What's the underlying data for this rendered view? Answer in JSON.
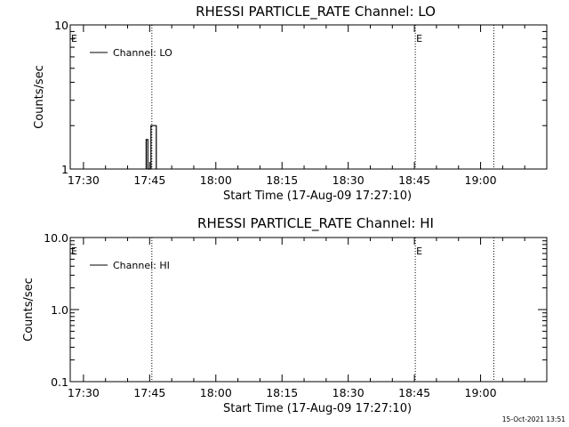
{
  "chart_data": [
    {
      "type": "line",
      "title": "RHESSI PARTICLE_RATE Channel: LO",
      "xlabel": "Start Time (17-Aug-09 17:27:10)",
      "ylabel": "Counts/sec",
      "x_tick_labels": [
        "17:30",
        "17:45",
        "18:00",
        "18:15",
        "18:30",
        "18:45",
        "19:00"
      ],
      "x_ticks_minutes": [
        0,
        15,
        30,
        45,
        60,
        75,
        90
      ],
      "xlim_minutes_after_17_30": [
        -3,
        105
      ],
      "y_scale": "log",
      "ylim": [
        1,
        10
      ],
      "y_tick_labels": [
        "1",
        "10"
      ],
      "y_ticks": [
        1,
        10
      ],
      "grid": false,
      "legend": "top-left",
      "series": [
        {
          "name": "Channel: LO",
          "color": "#000000",
          "points": [
            {
              "x": 14.2,
              "y": 1
            },
            {
              "x": 14.2,
              "y": 1.6
            },
            {
              "x": 14.6,
              "y": 1.6
            },
            {
              "x": 14.6,
              "y": 1
            },
            {
              "x": 15.3,
              "y": 1
            },
            {
              "x": 15.3,
              "y": 2
            },
            {
              "x": 16.5,
              "y": 2
            },
            {
              "x": 16.5,
              "y": 1
            }
          ]
        }
      ],
      "vertical_markers": [
        {
          "x": 15.5,
          "label": ""
        },
        {
          "x": 75.2,
          "label": "E"
        },
        {
          "x": 93,
          "label": ""
        }
      ],
      "edge_label": "E"
    },
    {
      "type": "line",
      "title": "RHESSI PARTICLE_RATE Channel: HI",
      "xlabel": "Start Time (17-Aug-09 17:27:10)",
      "ylabel": "Counts/sec",
      "x_tick_labels": [
        "17:30",
        "17:45",
        "18:00",
        "18:15",
        "18:30",
        "18:45",
        "19:00"
      ],
      "x_ticks_minutes": [
        0,
        15,
        30,
        45,
        60,
        75,
        90
      ],
      "xlim_minutes_after_17_30": [
        -3,
        105
      ],
      "y_scale": "log",
      "ylim": [
        0.1,
        10
      ],
      "y_tick_labels": [
        "0.1",
        "1.0",
        "10.0"
      ],
      "y_ticks": [
        0.1,
        1,
        10
      ],
      "grid": false,
      "legend": "top-left",
      "series": [
        {
          "name": "Channel: HI",
          "color": "#000000",
          "points": []
        }
      ],
      "vertical_markers": [
        {
          "x": 15.5,
          "label": ""
        },
        {
          "x": 75.2,
          "label": "E"
        },
        {
          "x": 93,
          "label": ""
        }
      ],
      "edge_label": "E"
    }
  ],
  "footer": {
    "timestamp": "15-Oct-2021 13:51"
  }
}
